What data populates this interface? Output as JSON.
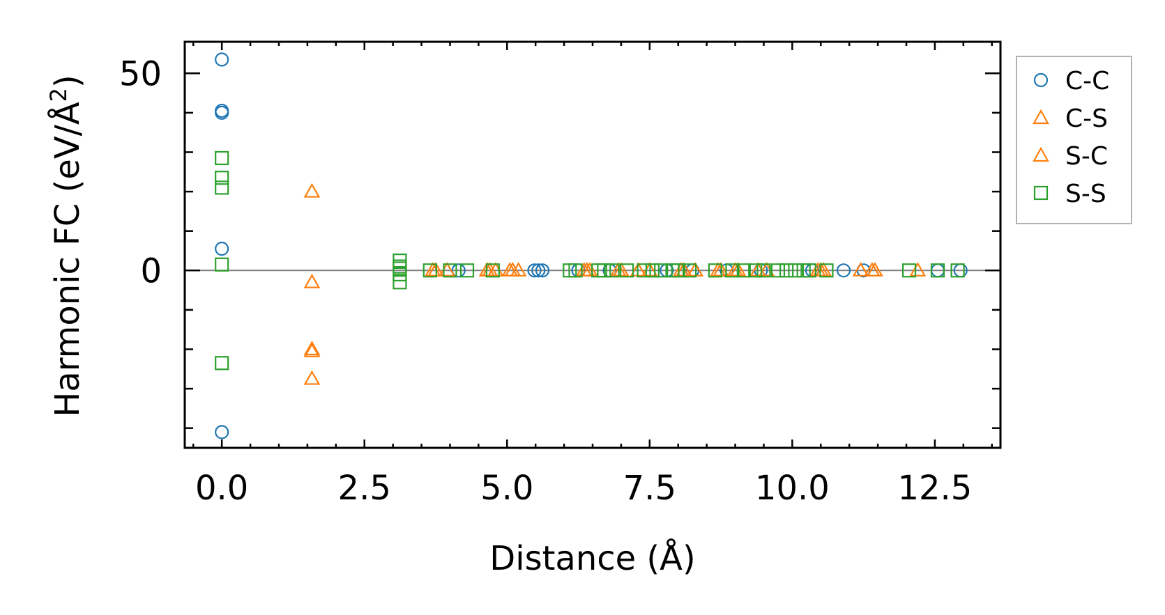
{
  "chart_data": {
    "type": "scatter",
    "title": "",
    "xlabel": "Distance (Å)",
    "ylabel": "Harmonic FC (eV/Å",
    "ylabel_sup": "2",
    "ylabel_end": ")",
    "xlim": [
      -0.65,
      13.65
    ],
    "ylim": [
      -45,
      58
    ],
    "xticks": [
      "0.0",
      "2.5",
      "5.0",
      "7.5",
      "10.0",
      "12.5"
    ],
    "yticks": [
      "0",
      "50"
    ],
    "grid": false,
    "zero_line": true,
    "legend_position": "outside-right",
    "series": [
      {
        "name": "C-C",
        "marker": "circle",
        "color": "#1f77b4",
        "points": [
          [
            0.0,
            53.5
          ],
          [
            0.0,
            40.5
          ],
          [
            0.0,
            40.0
          ],
          [
            0.0,
            5.5
          ],
          [
            0.0,
            -41.0
          ],
          [
            4.15,
            0
          ],
          [
            5.48,
            0
          ],
          [
            5.55,
            0
          ],
          [
            5.62,
            0
          ],
          [
            6.25,
            0
          ],
          [
            6.8,
            0
          ],
          [
            7.8,
            0
          ],
          [
            8.25,
            0
          ],
          [
            8.85,
            0
          ],
          [
            9.45,
            0
          ],
          [
            10.35,
            0
          ],
          [
            10.9,
            0
          ],
          [
            11.25,
            0
          ],
          [
            12.55,
            0
          ],
          [
            12.95,
            0
          ]
        ]
      },
      {
        "name": "C-S",
        "marker": "triangle",
        "color": "#ff7f0e",
        "points": [
          [
            1.58,
            20.0
          ],
          [
            1.58,
            -3.0
          ],
          [
            1.58,
            -20.5
          ],
          [
            1.58,
            -27.5
          ],
          [
            3.7,
            0
          ],
          [
            3.95,
            0
          ],
          [
            4.7,
            0
          ],
          [
            4.8,
            0
          ],
          [
            5.05,
            0
          ],
          [
            5.2,
            0
          ],
          [
            6.35,
            0
          ],
          [
            6.45,
            0
          ],
          [
            6.95,
            0
          ],
          [
            7.3,
            0
          ],
          [
            8.05,
            0
          ],
          [
            8.3,
            0
          ],
          [
            8.75,
            0
          ],
          [
            9.05,
            0
          ],
          [
            9.55,
            0
          ],
          [
            10.45,
            0
          ],
          [
            10.55,
            0
          ],
          [
            11.2,
            0
          ],
          [
            11.45,
            0
          ],
          [
            12.2,
            0
          ]
        ]
      },
      {
        "name": "S-C",
        "marker": "triangle",
        "color": "#ff7f0e",
        "points": [
          [
            1.58,
            -20.0
          ],
          [
            3.75,
            0
          ],
          [
            4.65,
            0
          ],
          [
            5.1,
            0
          ],
          [
            6.4,
            0
          ],
          [
            7.0,
            0
          ],
          [
            7.5,
            0
          ],
          [
            8.1,
            0
          ],
          [
            8.7,
            0
          ],
          [
            9.0,
            0
          ],
          [
            9.4,
            0
          ],
          [
            10.5,
            0
          ],
          [
            11.4,
            0
          ]
        ]
      },
      {
        "name": "S-S",
        "marker": "square",
        "color": "#2ca02c",
        "points": [
          [
            0.0,
            28.5
          ],
          [
            0.0,
            23.5
          ],
          [
            0.0,
            21.0
          ],
          [
            0.0,
            1.5
          ],
          [
            0.0,
            -23.5
          ],
          [
            3.12,
            2.5
          ],
          [
            3.12,
            1.0
          ],
          [
            3.12,
            0.5
          ],
          [
            3.12,
            -1.0
          ],
          [
            3.12,
            -3.0
          ],
          [
            3.65,
            0
          ],
          [
            4.0,
            0
          ],
          [
            4.3,
            0
          ],
          [
            4.75,
            0
          ],
          [
            6.1,
            0
          ],
          [
            6.2,
            0
          ],
          [
            6.6,
            0
          ],
          [
            6.7,
            0
          ],
          [
            6.85,
            0
          ],
          [
            7.1,
            0
          ],
          [
            7.4,
            0
          ],
          [
            7.55,
            0
          ],
          [
            7.7,
            0
          ],
          [
            7.9,
            0
          ],
          [
            8.0,
            0
          ],
          [
            8.2,
            0
          ],
          [
            8.65,
            0
          ],
          [
            8.95,
            0
          ],
          [
            9.15,
            0
          ],
          [
            9.35,
            0
          ],
          [
            9.5,
            0
          ],
          [
            9.75,
            0
          ],
          [
            9.9,
            0
          ],
          [
            10.05,
            0
          ],
          [
            10.2,
            0
          ],
          [
            10.3,
            0
          ],
          [
            10.6,
            0
          ],
          [
            12.05,
            0
          ],
          [
            12.55,
            0
          ],
          [
            12.9,
            0
          ]
        ]
      }
    ]
  }
}
